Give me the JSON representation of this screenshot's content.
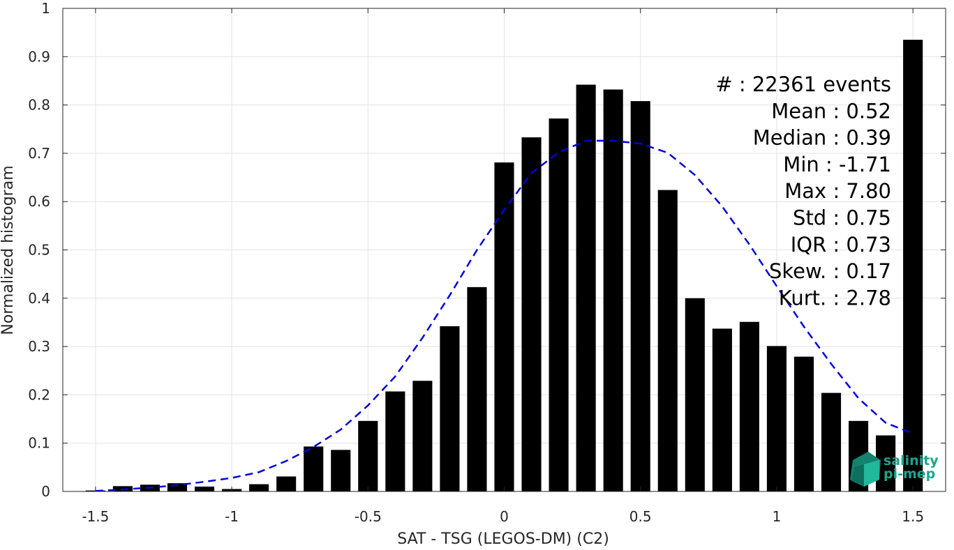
{
  "chart_data": {
    "type": "bar",
    "title": "",
    "xlabel": "SAT - TSG (LEGOS-DM) (C2)",
    "ylabel": "Normalized histogram",
    "xlim": [
      -1.62,
      1.62
    ],
    "ylim": [
      0,
      1
    ],
    "x_ticks": [
      -1.5,
      -1,
      -0.5,
      0,
      0.5,
      1,
      1.5
    ],
    "x_tick_labels": [
      "-1.5",
      "-1",
      "-0.5",
      "0",
      "0.5",
      "1",
      "1.5"
    ],
    "y_ticks": [
      0,
      0.1,
      0.2,
      0.3,
      0.4,
      0.5,
      0.6,
      0.7,
      0.8,
      0.9,
      1
    ],
    "y_tick_labels": [
      "0",
      "0.1",
      "0.2",
      "0.3",
      "0.4",
      "0.5",
      "0.6",
      "0.7",
      "0.8",
      "0.9",
      "1"
    ],
    "grid": true,
    "bar_color": "#000000",
    "bin_width": 0.1,
    "x": [
      -1.5,
      -1.4,
      -1.3,
      -1.2,
      -1.1,
      -1.0,
      -0.9,
      -0.8,
      -0.7,
      -0.6,
      -0.5,
      -0.4,
      -0.3,
      -0.2,
      -0.1,
      0.0,
      0.1,
      0.2,
      0.3,
      0.4,
      0.5,
      0.6,
      0.7,
      0.8,
      0.9,
      1.0,
      1.1,
      1.2,
      1.3,
      1.4,
      1.5
    ],
    "values": [
      0.002,
      0.011,
      0.014,
      0.017,
      0.01,
      0.005,
      0.015,
      0.031,
      0.093,
      0.086,
      0.146,
      0.207,
      0.229,
      0.342,
      0.423,
      0.681,
      0.733,
      0.772,
      0.842,
      0.832,
      0.808,
      0.624,
      0.4,
      0.337,
      0.351,
      0.301,
      0.279,
      0.204,
      0.146,
      0.116,
      0.935
    ],
    "fit_curve": {
      "style": "dashed",
      "color": "#0000dd",
      "x": [
        -1.5,
        -1.4,
        -1.3,
        -1.2,
        -1.1,
        -1.0,
        -0.9,
        -0.8,
        -0.7,
        -0.6,
        -0.5,
        -0.4,
        -0.3,
        -0.2,
        -0.1,
        0.0,
        0.1,
        0.2,
        0.3,
        0.4,
        0.5,
        0.6,
        0.7,
        0.8,
        0.9,
        1.0,
        1.1,
        1.2,
        1.3,
        1.4,
        1.5
      ],
      "y": [
        0.001,
        0.004,
        0.008,
        0.013,
        0.02,
        0.028,
        0.04,
        0.063,
        0.092,
        0.128,
        0.178,
        0.238,
        0.318,
        0.406,
        0.5,
        0.583,
        0.659,
        0.702,
        0.726,
        0.726,
        0.72,
        0.701,
        0.655,
        0.59,
        0.511,
        0.425,
        0.341,
        0.264,
        0.193,
        0.142,
        0.12
      ]
    },
    "annotations": [
      "#  : 22361 events",
      "Mean : 0.52",
      "Median : 0.39",
      "Min : -1.71",
      "Max : 7.80",
      "Std : 0.75",
      "IQR : 0.73",
      "Skew. : 0.17",
      "Kurt. : 2.78"
    ]
  },
  "logo": {
    "lines": [
      "salinity",
      "pi-mep"
    ],
    "color": "#1aa58c"
  }
}
